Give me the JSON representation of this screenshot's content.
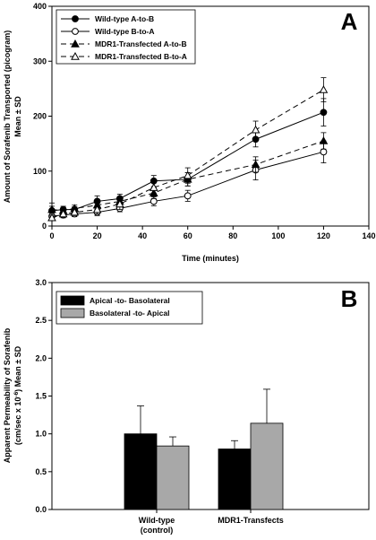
{
  "chart_data": [
    {
      "type": "line",
      "panel_label": "A",
      "xlabel": "Time (minutes)",
      "ylabel_lines": [
        "Amount of Sorafenib Transported (picogram)",
        "Mean ± SD"
      ],
      "xlim": [
        0,
        140
      ],
      "ylim": [
        0,
        400
      ],
      "x_ticks": [
        0,
        20,
        40,
        60,
        80,
        100,
        120,
        140
      ],
      "y_ticks": [
        0,
        100,
        200,
        300,
        400
      ],
      "legend_position": "top-left",
      "x": [
        0,
        5,
        10,
        20,
        30,
        45,
        60,
        90,
        120
      ],
      "series": [
        {
          "name": "Wild-type A-to-B",
          "line": "solid",
          "marker": "filled-circle",
          "values": [
            28,
            30,
            30,
            45,
            50,
            82,
            85,
            158,
            207
          ],
          "errors": [
            8,
            6,
            5,
            10,
            8,
            10,
            12,
            14,
            25
          ]
        },
        {
          "name": "Wild-type B-to-A",
          "line": "solid",
          "marker": "open-circle",
          "values": [
            18,
            20,
            22,
            25,
            32,
            45,
            55,
            102,
            135
          ],
          "errors": [
            6,
            5,
            5,
            6,
            6,
            8,
            10,
            18,
            20
          ]
        },
        {
          "name": "MDR1-Transfected A-to-B",
          "line": "dashed",
          "marker": "filled-triangle",
          "values": [
            30,
            28,
            32,
            38,
            45,
            60,
            85,
            112,
            155
          ],
          "errors": [
            12,
            6,
            6,
            8,
            8,
            10,
            12,
            14,
            15
          ]
        },
        {
          "name": "MDR1-Transfected B-to-A",
          "line": "dashed",
          "marker": "open-triangle",
          "values": [
            15,
            22,
            25,
            30,
            40,
            70,
            92,
            175,
            248
          ],
          "errors": [
            5,
            6,
            6,
            8,
            10,
            10,
            14,
            16,
            22
          ]
        }
      ]
    },
    {
      "type": "bar",
      "panel_label": "B",
      "ylabel_lines": [
        "Apparent Permeability of Sorafenib",
        "(cm/sec x 10",
        "-6",
        ") Mean ± SD"
      ],
      "ylim": [
        0,
        3.0
      ],
      "y_ticks": [
        "0.0",
        "0.5",
        "1.0",
        "1.5",
        "2.0",
        "2.5",
        "3.0"
      ],
      "category_lines": [
        [
          "Wild-type",
          "(control)"
        ],
        [
          "MDR1-Transfects"
        ]
      ],
      "legend_position": "top-left",
      "series": [
        {
          "name": "Apical -to- Basolateral",
          "color": "#000000",
          "values": [
            1.0,
            0.8
          ],
          "errors": [
            0.37,
            0.11
          ]
        },
        {
          "name": "Basolateral -to- Apical",
          "color": "#a8a8a8",
          "values": [
            0.84,
            1.14
          ],
          "errors": [
            0.12,
            0.45
          ]
        }
      ]
    }
  ]
}
